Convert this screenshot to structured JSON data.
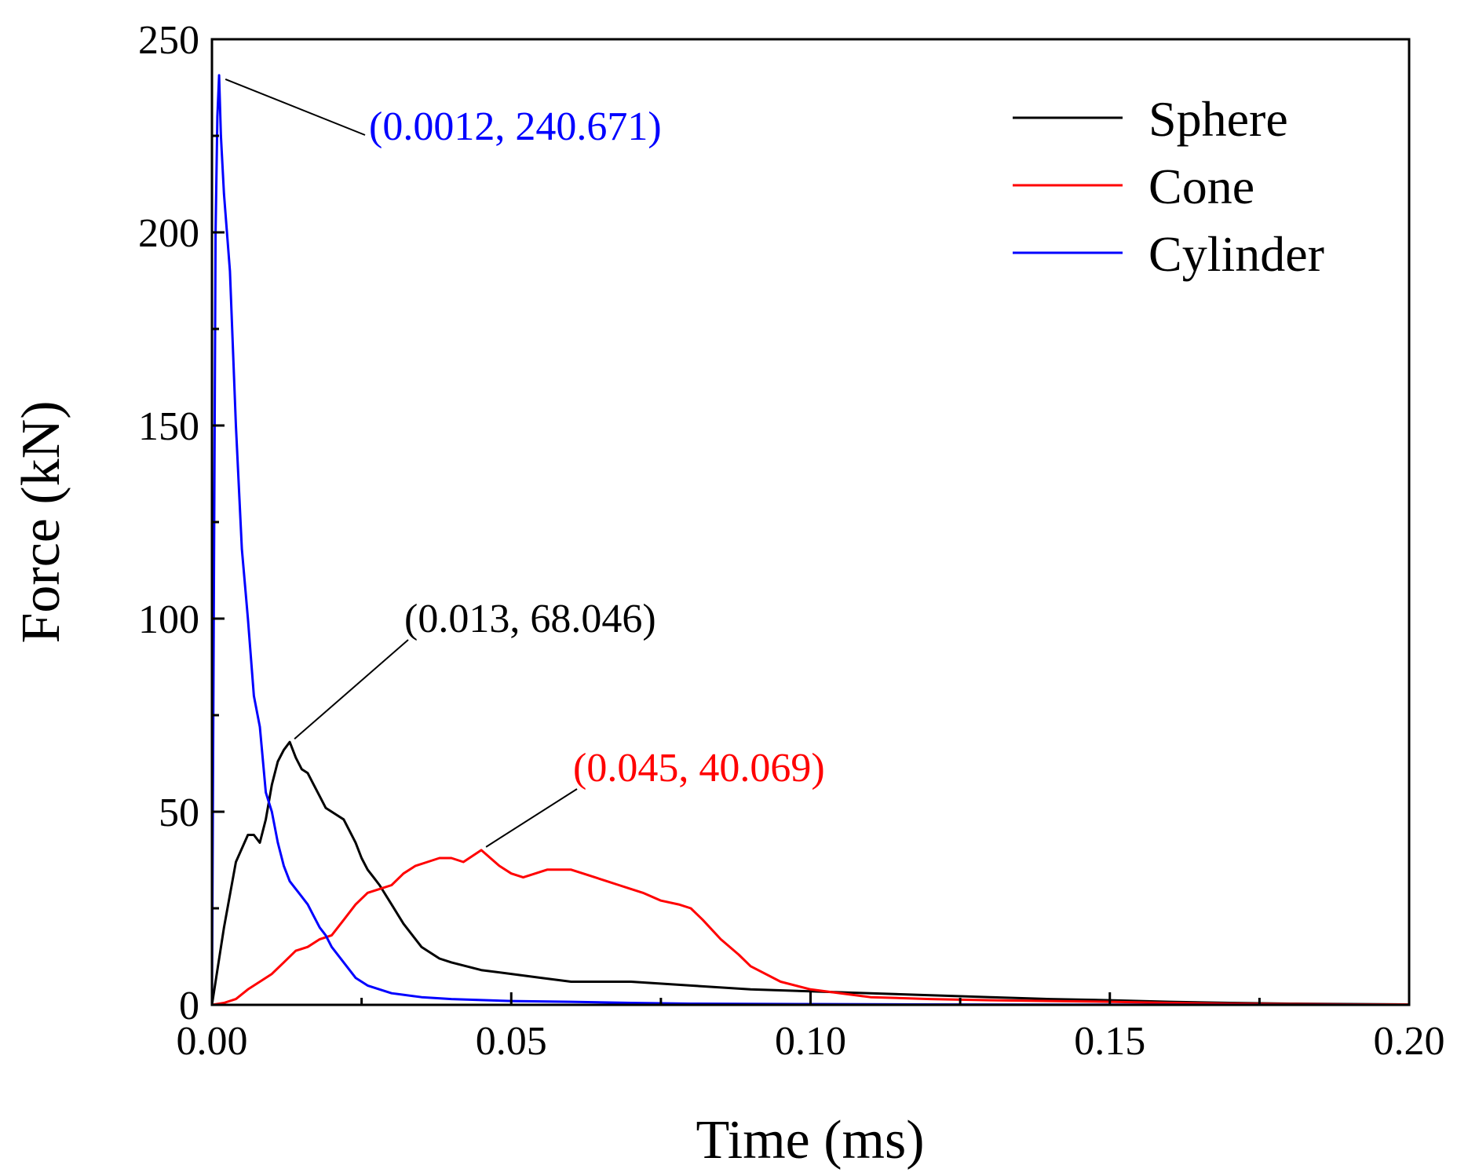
{
  "chart_data": {
    "type": "line",
    "title": "",
    "xlabel": "Time (ms)",
    "ylabel": "Force (kN)",
    "xlim": [
      0,
      0.2
    ],
    "ylim": [
      0,
      250
    ],
    "xticks": [
      0.0,
      0.05,
      0.1,
      0.15,
      0.2
    ],
    "xtick_labels": [
      "0.00",
      "0.05",
      "0.10",
      "0.15",
      "0.20"
    ],
    "yticks": [
      0,
      50,
      100,
      150,
      200,
      250
    ],
    "ytick_labels": [
      "0",
      "50",
      "100",
      "150",
      "200",
      "250"
    ],
    "grid": false,
    "legend_position": "top-right",
    "series": [
      {
        "name": "Sphere",
        "color": "#000000",
        "x": [
          0,
          0.002,
          0.004,
          0.006,
          0.007,
          0.008,
          0.009,
          0.01,
          0.011,
          0.012,
          0.013,
          0.014,
          0.015,
          0.016,
          0.017,
          0.018,
          0.019,
          0.02,
          0.021,
          0.022,
          0.023,
          0.024,
          0.025,
          0.026,
          0.027,
          0.028,
          0.03,
          0.032,
          0.035,
          0.038,
          0.04,
          0.045,
          0.05,
          0.055,
          0.06,
          0.065,
          0.07,
          0.08,
          0.09,
          0.1,
          0.11,
          0.12,
          0.13,
          0.14,
          0.15,
          0.16,
          0.17,
          0.18,
          0.19,
          0.2
        ],
        "y": [
          0,
          20,
          37,
          44,
          44,
          42,
          48,
          57,
          63,
          66,
          68.046,
          64,
          61,
          60,
          57,
          54,
          51,
          50,
          49,
          48,
          45,
          42,
          38,
          35,
          33,
          31,
          26,
          21,
          15,
          12,
          11,
          9,
          8,
          7,
          6,
          6,
          6,
          5,
          4,
          3.5,
          3,
          2.5,
          2,
          1.5,
          1.2,
          0.8,
          0.5,
          0.3,
          0.2,
          0.1
        ]
      },
      {
        "name": "Cone",
        "color": "#ff0000",
        "x": [
          0,
          0.002,
          0.004,
          0.006,
          0.008,
          0.01,
          0.012,
          0.014,
          0.016,
          0.018,
          0.02,
          0.022,
          0.024,
          0.026,
          0.028,
          0.03,
          0.032,
          0.034,
          0.036,
          0.038,
          0.04,
          0.042,
          0.045,
          0.048,
          0.05,
          0.052,
          0.054,
          0.056,
          0.058,
          0.06,
          0.062,
          0.064,
          0.066,
          0.068,
          0.07,
          0.072,
          0.075,
          0.078,
          0.08,
          0.082,
          0.085,
          0.088,
          0.09,
          0.095,
          0.1,
          0.105,
          0.11,
          0.12,
          0.13,
          0.14,
          0.15,
          0.16,
          0.17,
          0.18,
          0.19,
          0.2
        ],
        "y": [
          0,
          0.5,
          1.5,
          4,
          6,
          8,
          11,
          14,
          15,
          17,
          18,
          22,
          26,
          29,
          30,
          31,
          34,
          36,
          37,
          38,
          38,
          37,
          40.069,
          36,
          34,
          33,
          34,
          35,
          35,
          35,
          34,
          33,
          32,
          31,
          30,
          29,
          27,
          26,
          25,
          22,
          17,
          13,
          10,
          6,
          4,
          3,
          2,
          1.5,
          1.2,
          1,
          0.8,
          0.5,
          0.3,
          0.2,
          0.1,
          0.1
        ]
      },
      {
        "name": "Cylinder",
        "color": "#0000ff",
        "x": [
          0,
          0.0003,
          0.0006,
          0.0009,
          0.0012,
          0.0015,
          0.002,
          0.0025,
          0.003,
          0.004,
          0.005,
          0.006,
          0.007,
          0.008,
          0.009,
          0.01,
          0.011,
          0.012,
          0.013,
          0.014,
          0.015,
          0.016,
          0.017,
          0.018,
          0.019,
          0.02,
          0.022,
          0.024,
          0.026,
          0.028,
          0.03,
          0.035,
          0.04,
          0.05,
          0.06,
          0.07,
          0.08,
          0.1,
          0.12,
          0.15,
          0.2
        ],
        "y": [
          0,
          100,
          200,
          230,
          240.671,
          225,
          210,
          200,
          190,
          150,
          118,
          100,
          80,
          72,
          55,
          50,
          42,
          36,
          32,
          30,
          28,
          26,
          23,
          20,
          18,
          15,
          11,
          7,
          5,
          4,
          3,
          2,
          1.5,
          1,
          0.8,
          0.5,
          0.3,
          0.2,
          0.1,
          0.05,
          0
        ]
      }
    ],
    "annotations": [
      {
        "text": "(0.0012, 240.671)",
        "x": 0.0012,
        "y": 240.671,
        "color": "#0000ff"
      },
      {
        "text": "(0.013, 68.046)",
        "x": 0.013,
        "y": 68.046,
        "color": "#000000"
      },
      {
        "text": "(0.045, 40.069)",
        "x": 0.045,
        "y": 40.069,
        "color": "#ff0000"
      }
    ]
  }
}
